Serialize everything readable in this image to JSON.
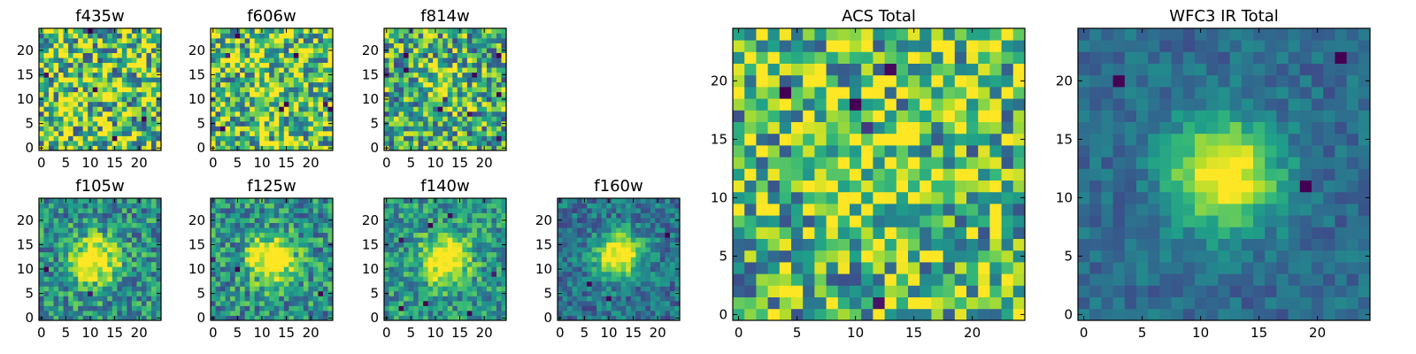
{
  "chart_data": {
    "type": "heatmap",
    "colormap": "viridis",
    "panels": [
      {
        "id": "f435w",
        "title": "f435w",
        "xticks": [
          0,
          5,
          10,
          15,
          20
        ],
        "yticks": [
          0,
          5,
          10,
          15,
          20
        ],
        "xlim": [
          0,
          24
        ],
        "ylim": [
          0,
          24
        ],
        "grid_size": 25,
        "source_center": null,
        "peak_level": 0.0,
        "noise_level": 0.6,
        "background_level": 0.72
      },
      {
        "id": "f606w",
        "title": "f606w",
        "xticks": [
          0,
          5,
          10,
          15,
          20
        ],
        "yticks": [
          0,
          5,
          10,
          15,
          20
        ],
        "xlim": [
          0,
          24
        ],
        "ylim": [
          0,
          24
        ],
        "grid_size": 25,
        "source_center": [
          12,
          12
        ],
        "peak_level": 0.15,
        "noise_level": 0.55,
        "background_level": 0.7
      },
      {
        "id": "f814w",
        "title": "f814w",
        "xticks": [
          0,
          5,
          10,
          15,
          20
        ],
        "yticks": [
          0,
          5,
          10,
          15,
          20
        ],
        "xlim": [
          0,
          24
        ],
        "ylim": [
          0,
          24
        ],
        "grid_size": 25,
        "source_center": [
          12,
          13
        ],
        "peak_level": 0.3,
        "noise_level": 0.5,
        "background_level": 0.6
      },
      {
        "id": "f105w",
        "title": "f105w",
        "xticks": [
          0,
          5,
          10,
          15,
          20
        ],
        "yticks": [
          0,
          5,
          10,
          15,
          20
        ],
        "xlim": [
          0,
          24
        ],
        "ylim": [
          0,
          24
        ],
        "grid_size": 25,
        "source_center": [
          11,
          12
        ],
        "peak_level": 0.9,
        "noise_level": 0.35,
        "background_level": 0.5
      },
      {
        "id": "f125w",
        "title": "f125w",
        "xticks": [
          0,
          5,
          10,
          15,
          20
        ],
        "yticks": [
          0,
          5,
          10,
          15,
          20
        ],
        "xlim": [
          0,
          24
        ],
        "ylim": [
          0,
          24
        ],
        "grid_size": 25,
        "source_center": [
          12,
          12
        ],
        "peak_level": 0.95,
        "noise_level": 0.35,
        "background_level": 0.5
      },
      {
        "id": "f140w",
        "title": "f140w",
        "xticks": [
          0,
          5,
          10,
          15,
          20
        ],
        "yticks": [
          0,
          5,
          10,
          15,
          20
        ],
        "xlim": [
          0,
          24
        ],
        "ylim": [
          0,
          24
        ],
        "grid_size": 25,
        "source_center": [
          12,
          12
        ],
        "peak_level": 0.95,
        "noise_level": 0.3,
        "background_level": 0.52
      },
      {
        "id": "f160w",
        "title": "f160w",
        "xticks": [
          0,
          5,
          10,
          15,
          20
        ],
        "yticks": [
          0,
          5,
          10,
          15,
          20
        ],
        "xlim": [
          0,
          24
        ],
        "ylim": [
          0,
          24
        ],
        "grid_size": 25,
        "source_center": [
          12,
          13
        ],
        "peak_level": 1.0,
        "noise_level": 0.25,
        "background_level": 0.38
      },
      {
        "id": "acs-total",
        "title": "ACS Total",
        "xticks": [
          0,
          5,
          10,
          15,
          20
        ],
        "yticks": [
          0,
          5,
          10,
          15,
          20
        ],
        "xlim": [
          0,
          24
        ],
        "ylim": [
          0,
          24
        ],
        "grid_size": 25,
        "source_center": [
          12,
          12
        ],
        "peak_level": 0.3,
        "noise_level": 0.55,
        "background_level": 0.68
      },
      {
        "id": "wfc3-ir-total",
        "title": "WFC3 IR Total",
        "xticks": [
          0,
          5,
          10,
          15,
          20
        ],
        "yticks": [
          0,
          5,
          10,
          15,
          20
        ],
        "xlim": [
          0,
          24
        ],
        "ylim": [
          0,
          24
        ],
        "grid_size": 25,
        "source_center": [
          12,
          12
        ],
        "peak_level": 1.0,
        "noise_level": 0.15,
        "background_level": 0.35
      }
    ]
  }
}
